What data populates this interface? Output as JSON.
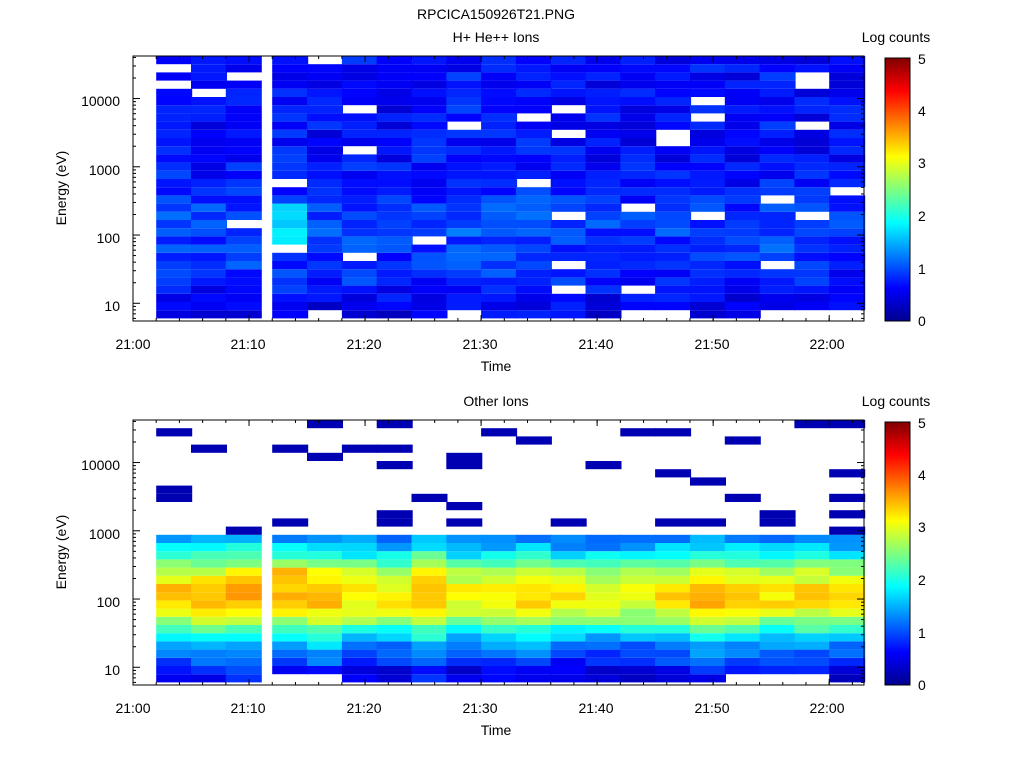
{
  "figure_title": "RPCICA150926T21.PNG",
  "colorscale": [
    "#00008f",
    "#0000ff",
    "#007fff",
    "#00ffff",
    "#7fff7f",
    "#ffff00",
    "#ff7f00",
    "#ff0000",
    "#800000"
  ],
  "chart_data": [
    {
      "type": "heatmap",
      "title": "H+ He++ Ions",
      "xlabel": "Time",
      "ylabel": "Energy (eV)",
      "colorbar_label": "Log counts",
      "colorbar_ticks": [
        "0",
        "1",
        "2",
        "3",
        "4",
        "5"
      ],
      "clim": [
        0,
        5
      ],
      "x_ticks": [
        "21:00",
        "21:10",
        "21:20",
        "21:30",
        "21:40",
        "21:50",
        "22:00"
      ],
      "x_range_minutes": [
        0,
        63
      ],
      "x_time_bins": [
        "21:02",
        "21:05",
        "21:08",
        "21:12",
        "21:15",
        "21:18",
        "21:21",
        "21:24",
        "21:27",
        "21:30",
        "21:33",
        "21:36",
        "21:39",
        "21:42",
        "21:45",
        "21:48",
        "21:51",
        "21:54",
        "21:57",
        "22:00"
      ],
      "y_ticks": [
        "10",
        "100",
        "1000",
        "10000"
      ],
      "yscale": "log",
      "ylim": [
        5.5,
        42000
      ],
      "energy_profile": {
        "energy_eV": [
          8,
          12,
          20,
          40,
          80,
          150,
          300,
          700,
          1500,
          4000,
          10000,
          30000
        ],
        "log_counts": [
          0.45,
          0.55,
          0.7,
          0.8,
          0.85,
          0.9,
          0.8,
          0.65,
          0.6,
          0.6,
          0.6,
          0.6
        ]
      },
      "peak_log_counts": 1.9
    },
    {
      "type": "heatmap",
      "title": "Other Ions",
      "xlabel": "Time",
      "ylabel": "Energy (eV)",
      "colorbar_label": "Log counts",
      "colorbar_ticks": [
        "0",
        "1",
        "2",
        "3",
        "4",
        "5"
      ],
      "clim": [
        0,
        5
      ],
      "x_ticks": [
        "21:00",
        "21:10",
        "21:20",
        "21:30",
        "21:40",
        "21:50",
        "22:00"
      ],
      "x_range_minutes": [
        0,
        63
      ],
      "x_time_bins": [
        "21:02",
        "21:05",
        "21:08",
        "21:12",
        "21:15",
        "21:18",
        "21:21",
        "21:24",
        "21:27",
        "21:30",
        "21:33",
        "21:36",
        "21:39",
        "21:42",
        "21:45",
        "21:48",
        "21:51",
        "21:54",
        "21:57",
        "22:00"
      ],
      "y_ticks": [
        "10",
        "100",
        "1000",
        "10000"
      ],
      "yscale": "log",
      "ylim": [
        5.5,
        42000
      ],
      "energy_profile": {
        "energy_eV": [
          8,
          12,
          20,
          30,
          45,
          70,
          100,
          150,
          250,
          400,
          700
        ],
        "log_counts": [
          0.2,
          0.6,
          1.0,
          1.5,
          2.2,
          2.8,
          3.0,
          2.9,
          2.5,
          1.8,
          1.0
        ]
      },
      "peak_log_counts": 3.6
    }
  ]
}
